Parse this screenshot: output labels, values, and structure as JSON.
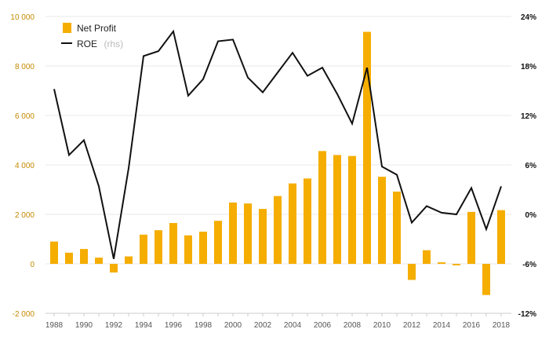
{
  "chart_data": {
    "type": "bar",
    "x": [
      1988,
      1989,
      1990,
      1991,
      1992,
      1993,
      1994,
      1995,
      1996,
      1997,
      1998,
      1999,
      2000,
      2001,
      2002,
      2003,
      2004,
      2005,
      2006,
      2007,
      2008,
      2009,
      2010,
      2011,
      2012,
      2013,
      2014,
      2015,
      2016,
      2017,
      2018
    ],
    "x_tick_labels": [
      "1988",
      "1990",
      "1992",
      "1994",
      "1996",
      "1998",
      "2000",
      "2002",
      "2004",
      "2006",
      "2008",
      "2010",
      "2012",
      "2014",
      "2016",
      "2018"
    ],
    "series": [
      {
        "name": "Net Profit",
        "type": "bar",
        "axis": "left",
        "color": "#f5ad00",
        "values": [
          900,
          450,
          600,
          250,
          -350,
          300,
          1180,
          1360,
          1650,
          1150,
          1300,
          1740,
          2480,
          2440,
          2220,
          2740,
          3250,
          3450,
          4560,
          4400,
          4360,
          9380,
          3520,
          2920,
          -650,
          550,
          60,
          -60,
          2100,
          -1260,
          2170
        ]
      },
      {
        "name": "ROE",
        "name_note": "(rhs)",
        "type": "line",
        "axis": "right",
        "color": "#111111",
        "values": [
          15.2,
          7.2,
          9.0,
          3.4,
          -5.4,
          5.6,
          19.2,
          19.8,
          22.2,
          14.4,
          16.4,
          21.0,
          21.2,
          16.6,
          14.8,
          17.2,
          19.6,
          16.8,
          17.8,
          14.6,
          11.0,
          17.8,
          5.8,
          4.8,
          -1.0,
          1.0,
          0.2,
          0.0,
          3.2,
          -1.8,
          3.4
        ]
      }
    ],
    "y_left": {
      "ylim": [
        -2000,
        10000
      ],
      "ticks": [
        -2000,
        0,
        2000,
        4000,
        6000,
        8000,
        10000
      ],
      "tick_labels": [
        "-2 000",
        "0",
        "2 000",
        "4 000",
        "6 000",
        "8 000",
        "10 000"
      ]
    },
    "y_right": {
      "ylim": [
        -12,
        24
      ],
      "ticks": [
        -12,
        -6,
        0,
        6,
        12,
        18,
        24
      ],
      "tick_labels": [
        "-12%",
        "-6%",
        "0%",
        "6%",
        "12%",
        "18%",
        "24%"
      ]
    },
    "grid": true,
    "legend_position": "top-left"
  }
}
